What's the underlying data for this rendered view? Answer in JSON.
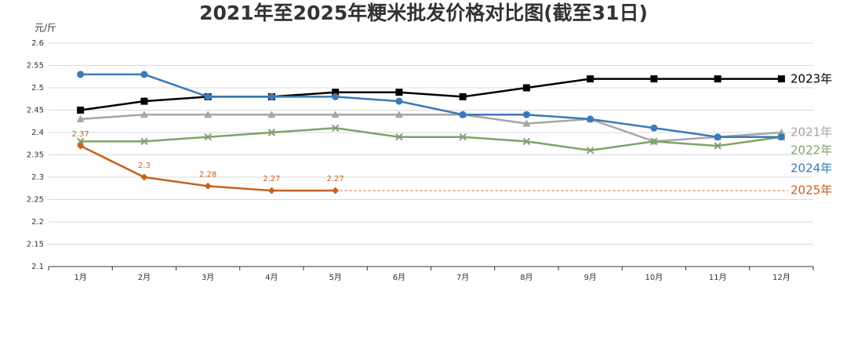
{
  "chart_data": {
    "type": "line",
    "title": "2021年至2025年粳米批发价格对比图(截至31日)",
    "y_label": "元/斤",
    "categories": [
      "1月",
      "2月",
      "3月",
      "4月",
      "5月",
      "6月",
      "7月",
      "8月",
      "9月",
      "10月",
      "11月",
      "12月"
    ],
    "ylim": [
      2.1,
      2.6
    ],
    "yticks": [
      2.1,
      2.15,
      2.2,
      2.25,
      2.3,
      2.35,
      2.4,
      2.45,
      2.5,
      2.55,
      2.6
    ],
    "grid": true,
    "series": [
      {
        "name": "2023年",
        "color": "#000000",
        "marker": "square",
        "values": [
          2.45,
          2.47,
          2.48,
          2.48,
          2.49,
          2.49,
          2.48,
          2.5,
          2.52,
          2.52,
          2.52,
          2.52
        ]
      },
      {
        "name": "2021年",
        "color": "#a6a6a6",
        "marker": "triangle",
        "values": [
          2.43,
          2.44,
          2.44,
          2.44,
          2.44,
          2.44,
          2.44,
          2.42,
          2.43,
          2.38,
          2.39,
          2.4
        ]
      },
      {
        "name": "2022年",
        "color": "#7da36b",
        "marker": "x",
        "values": [
          2.38,
          2.38,
          2.39,
          2.4,
          2.41,
          2.39,
          2.39,
          2.38,
          2.36,
          2.38,
          2.37,
          2.39
        ]
      },
      {
        "name": "2024年",
        "color": "#3a7ab8",
        "marker": "circle",
        "values": [
          2.53,
          2.53,
          2.48,
          2.48,
          2.48,
          2.47,
          2.44,
          2.44,
          2.43,
          2.41,
          2.39,
          2.39
        ]
      },
      {
        "name": "2025年",
        "color": "#c8611f",
        "marker": "diamond",
        "data_labels": true,
        "dashed_extension": true,
        "values": [
          2.37,
          2.3,
          2.28,
          2.27,
          2.27,
          null,
          null,
          null,
          null,
          null,
          null,
          null
        ]
      }
    ]
  }
}
